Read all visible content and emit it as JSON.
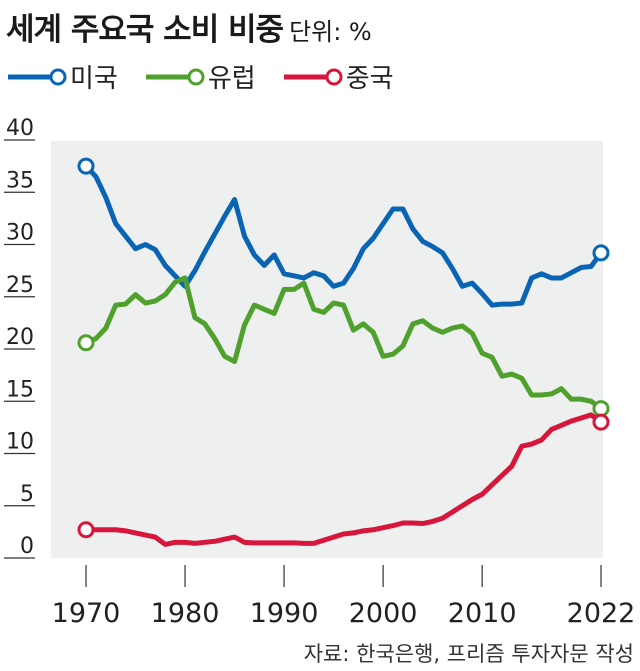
{
  "title": "세계 주요국 소비 비중",
  "unit": "단위: %",
  "source": "자료: 한국은행, 프리즘 투자자문 작성",
  "chart_data": {
    "type": "line",
    "title": "세계 주요국 소비 비중",
    "ylabel": "단위: %",
    "ylim": [
      0,
      40
    ],
    "yticks": [
      "0",
      "5",
      "10",
      "15",
      "20",
      "25",
      "30",
      "35",
      "40"
    ],
    "xticks": [
      "1970",
      "1980",
      "1990",
      "2000",
      "2010",
      "2022"
    ],
    "grid": false,
    "legend": "top-left",
    "x": [
      1970,
      1971,
      1972,
      1973,
      1974,
      1975,
      1976,
      1977,
      1978,
      1979,
      1980,
      1981,
      1982,
      1983,
      1984,
      1985,
      1986,
      1987,
      1988,
      1989,
      1990,
      1991,
      1992,
      1993,
      1994,
      1995,
      1996,
      1997,
      1998,
      1999,
      2000,
      2001,
      2002,
      2003,
      2004,
      2005,
      2006,
      2007,
      2008,
      2009,
      2010,
      2011,
      2012,
      2013,
      2014,
      2015,
      2016,
      2017,
      2018,
      2019,
      2020,
      2021,
      2022
    ],
    "series": [
      {
        "name": "미국",
        "color": "#0a64b4",
        "values": [
          37.5,
          36.5,
          34.5,
          32,
          30.8,
          29.6,
          30,
          29.5,
          28,
          27,
          26,
          27.5,
          29.3,
          31,
          32.7,
          34.3,
          30.8,
          29,
          28,
          29,
          27.2,
          27,
          26.8,
          27.3,
          27,
          26,
          26.3,
          27.7,
          29.6,
          30.6,
          32,
          33.4,
          33.4,
          31.5,
          30.3,
          29.8,
          29.2,
          27.7,
          26,
          26.3,
          25.3,
          24.2,
          24.3,
          24.3,
          24.4,
          26.8,
          27.2,
          26.8,
          26.8,
          27.3,
          27.8,
          27.9,
          29.2
        ]
      },
      {
        "name": "유럽",
        "color": "#4fa02c",
        "values": [
          20.6,
          21,
          22,
          24.2,
          24.3,
          25.2,
          24.4,
          24.6,
          25.2,
          26.4,
          26.8,
          23,
          22.4,
          21,
          19.3,
          18.8,
          22.3,
          24.2,
          23.8,
          23.4,
          25.7,
          25.7,
          26.3,
          23.8,
          23.5,
          24.4,
          24.2,
          21.8,
          22.4,
          21.6,
          19.3,
          19.5,
          20.3,
          22.4,
          22.7,
          22,
          21.6,
          22,
          22.2,
          21.5,
          19.6,
          19.2,
          17.4,
          17.6,
          17.2,
          15.6,
          15.6,
          15.7,
          16.2,
          15.2,
          15.2,
          15,
          14.3
        ]
      },
      {
        "name": "중국",
        "color": "#d7163c",
        "values": [
          2.7,
          2.7,
          2.7,
          2.7,
          2.6,
          2.4,
          2.2,
          2.0,
          1.3,
          1.5,
          1.5,
          1.4,
          1.5,
          1.6,
          1.8,
          2.0,
          1.5,
          1.45,
          1.45,
          1.45,
          1.45,
          1.45,
          1.4,
          1.4,
          1.7,
          2.0,
          2.3,
          2.4,
          2.6,
          2.7,
          2.9,
          3.1,
          3.35,
          3.35,
          3.3,
          3.5,
          3.8,
          4.4,
          5.0,
          5.6,
          6.1,
          7.0,
          7.9,
          8.8,
          10.7,
          10.9,
          11.3,
          12.3,
          12.7,
          13.1,
          13.4,
          13.7,
          13.0
        ]
      }
    ]
  }
}
